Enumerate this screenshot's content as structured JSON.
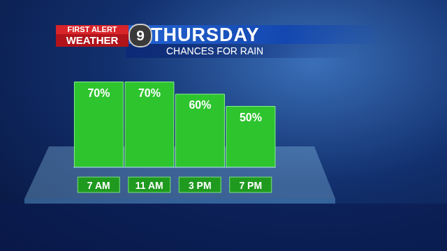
{
  "chart_data": {
    "type": "bar",
    "title": "THURSDAY",
    "subtitle": "CHANCES FOR RAIN",
    "logo": {
      "line1": "FIRST ALERT",
      "line2": "WEATHER",
      "channel": "9"
    },
    "categories": [
      "7 AM",
      "11 AM",
      "3 PM",
      "7 PM"
    ],
    "values": [
      70,
      70,
      60,
      50
    ],
    "value_labels": [
      "70%",
      "70%",
      "60%",
      "50%"
    ],
    "data_labels": true,
    "color": "#2ec42e",
    "ylim": [
      0,
      80
    ],
    "tick_labels": "x",
    "grid": false
  }
}
